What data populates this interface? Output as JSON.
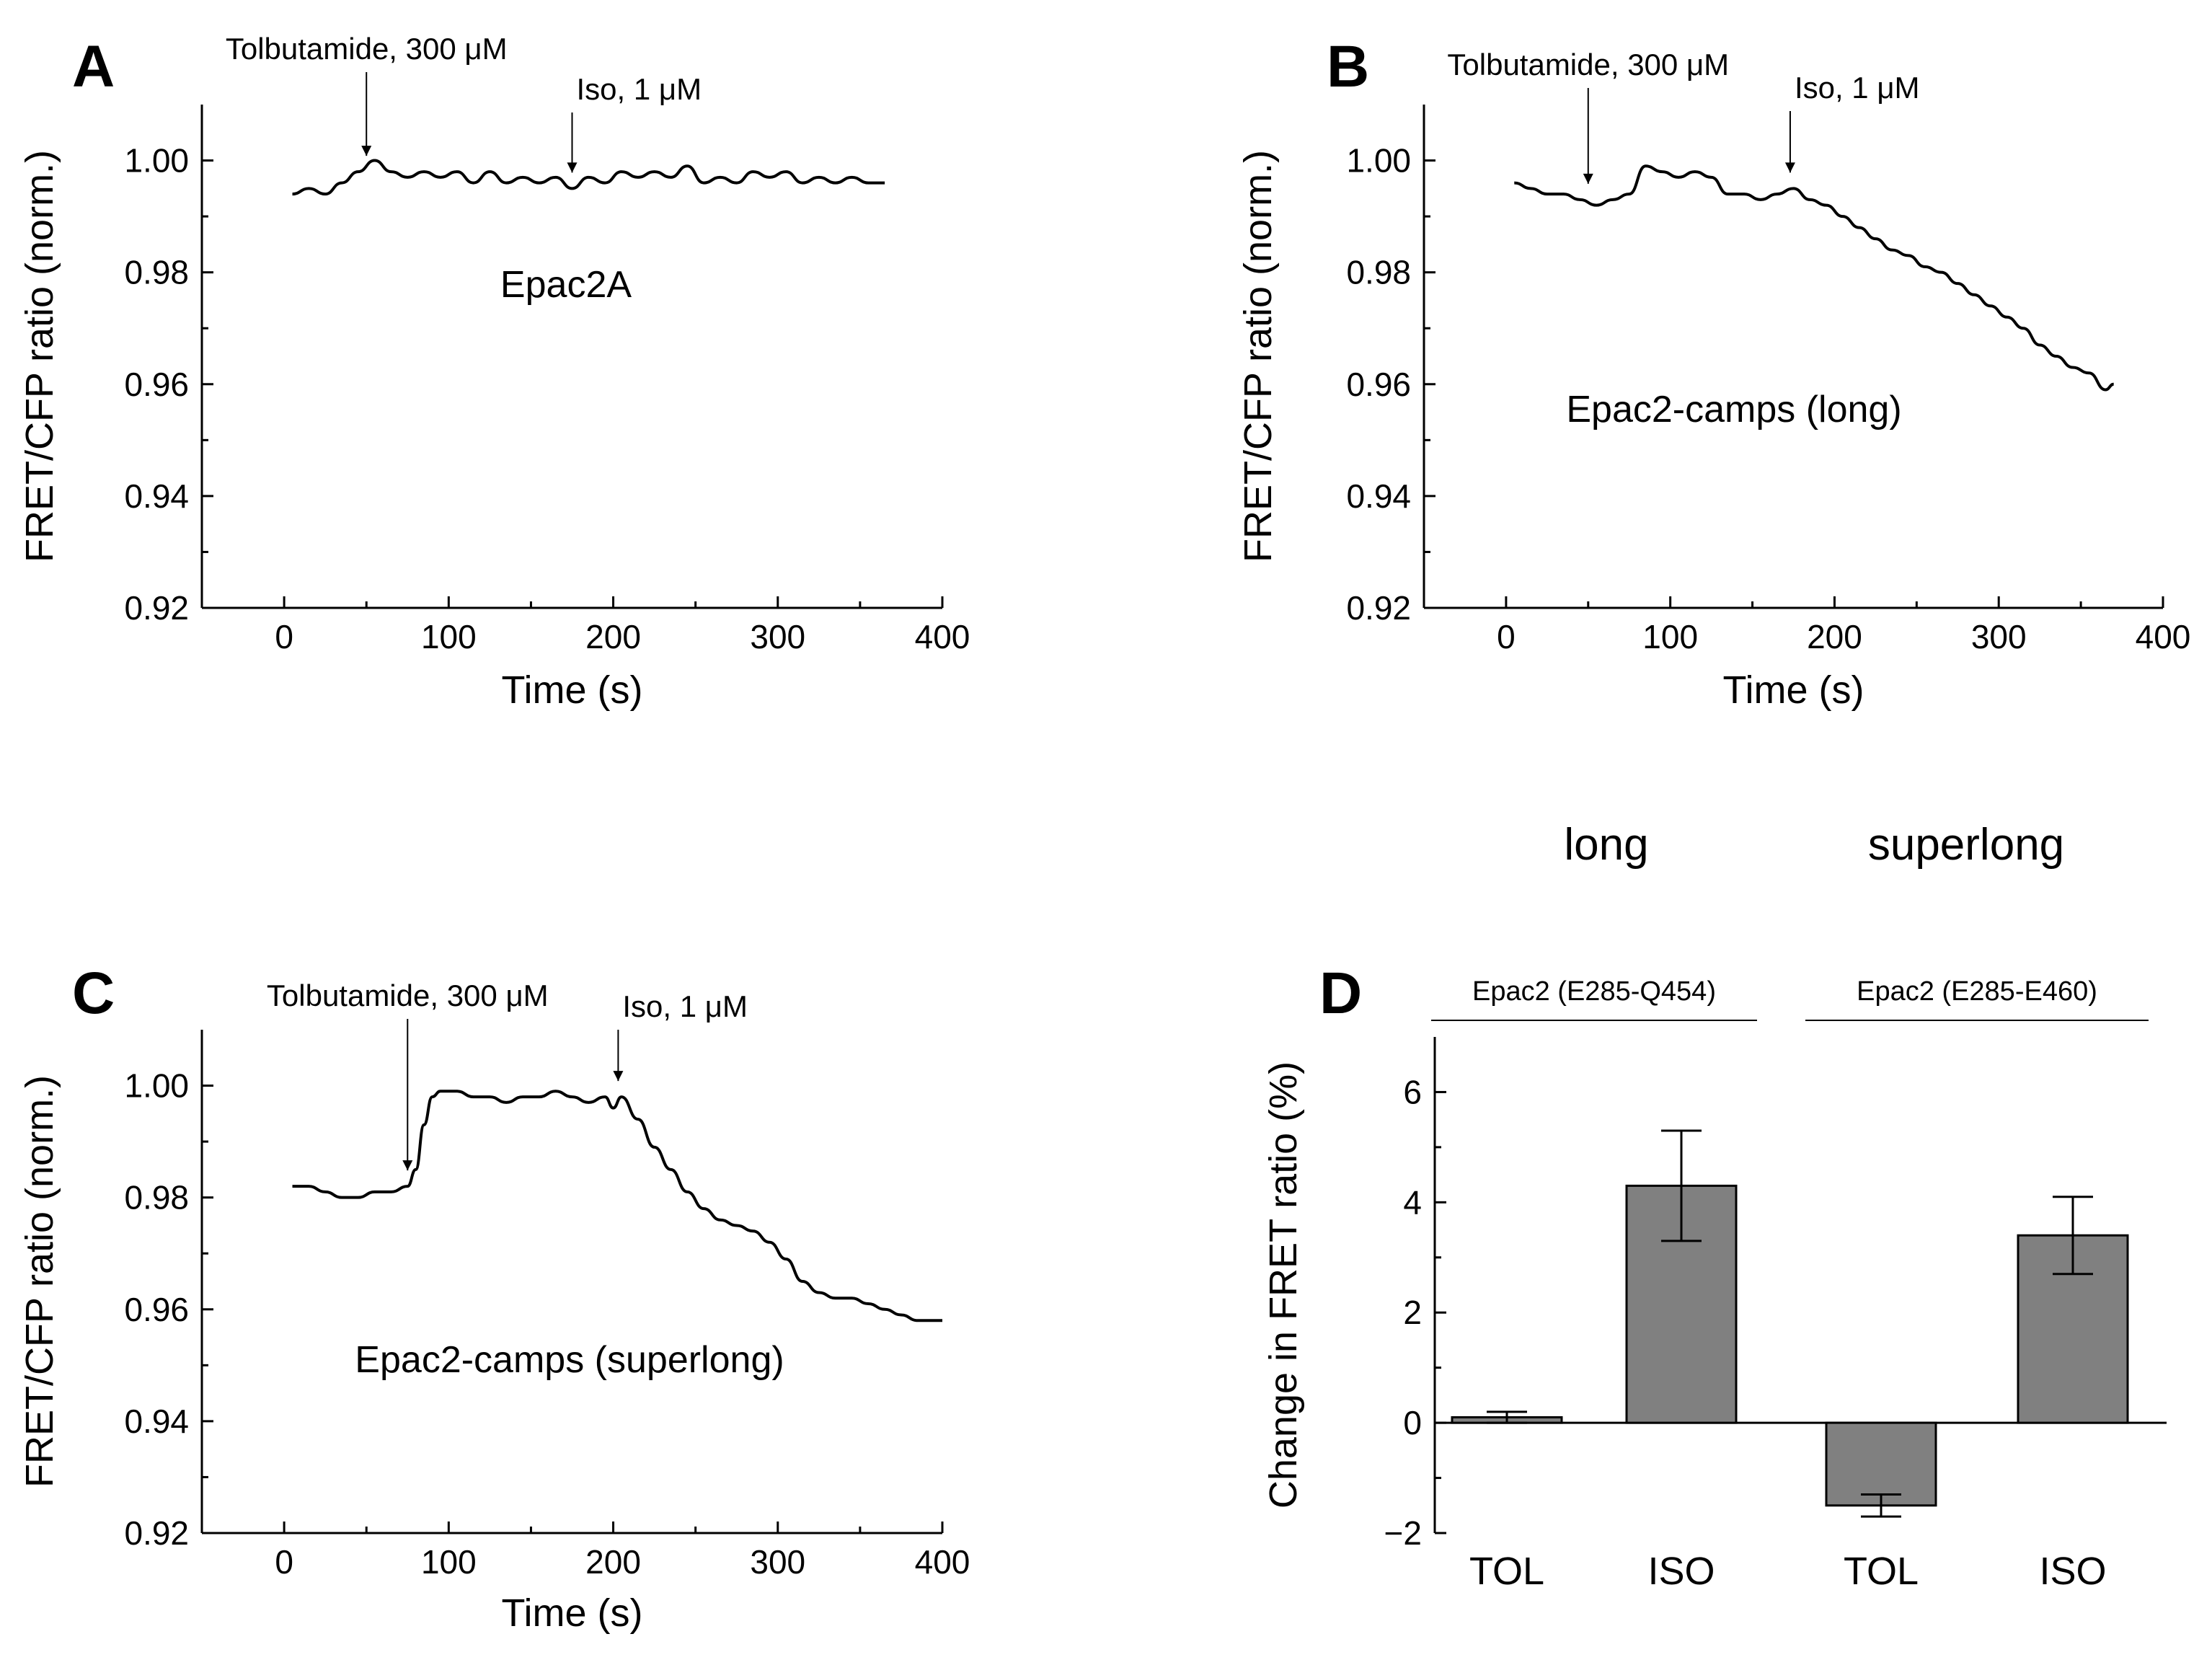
{
  "header_labels": [
    "long",
    "superlong"
  ],
  "chart_data": [
    {
      "panel": "A",
      "type": "line",
      "title": "",
      "series_label": "Epac2A",
      "xlabel": "Time (s)",
      "ylabel": "FRET/CFP ratio (norm.)",
      "xlim": [
        -50,
        400
      ],
      "ylim": [
        0.92,
        1.01
      ],
      "xticks": [
        0,
        100,
        200,
        300,
        400
      ],
      "yticks": [
        0.92,
        0.94,
        0.96,
        0.98,
        1.0
      ],
      "xtick_labels": [
        "0",
        "100",
        "200",
        "300",
        "400"
      ],
      "ytick_labels": [
        "0.92",
        "0.94",
        "0.96",
        "0.98",
        "1.00"
      ],
      "events": [
        {
          "x": 50,
          "label": "Tolbutamide, 300 μM"
        },
        {
          "x": 175,
          "label": "Iso, 1 μM"
        }
      ],
      "x": [
        5,
        15,
        25,
        35,
        45,
        55,
        65,
        75,
        85,
        95,
        105,
        115,
        125,
        135,
        145,
        155,
        165,
        175,
        185,
        195,
        205,
        215,
        225,
        235,
        245,
        255,
        265,
        275,
        285,
        295,
        305,
        315,
        325,
        335,
        345,
        355,
        365
      ],
      "y": [
        0.994,
        0.995,
        0.994,
        0.996,
        0.998,
        1.0,
        0.998,
        0.997,
        0.998,
        0.997,
        0.998,
        0.996,
        0.998,
        0.996,
        0.997,
        0.996,
        0.997,
        0.995,
        0.997,
        0.996,
        0.998,
        0.997,
        0.998,
        0.997,
        0.999,
        0.996,
        0.997,
        0.996,
        0.998,
        0.997,
        0.998,
        0.996,
        0.997,
        0.996,
        0.997,
        0.996,
        0.996
      ]
    },
    {
      "panel": "B",
      "type": "line",
      "title": "",
      "series_label": "Epac2-camps (long)",
      "xlabel": "Time (s)",
      "ylabel": "FRET/CFP ratio (norm.)",
      "xlim": [
        -50,
        400
      ],
      "ylim": [
        0.92,
        1.01
      ],
      "xticks": [
        0,
        100,
        200,
        300,
        400
      ],
      "yticks": [
        0.92,
        0.94,
        0.96,
        0.98,
        1.0
      ],
      "xtick_labels": [
        "0",
        "100",
        "200",
        "300",
        "400"
      ],
      "ytick_labels": [
        "0.92",
        "0.94",
        "0.96",
        "0.98",
        "1.00"
      ],
      "events": [
        {
          "x": 50,
          "label": "Tolbutamide, 300 μM"
        },
        {
          "x": 173,
          "label": "Iso, 1 μM"
        }
      ],
      "x": [
        5,
        15,
        25,
        35,
        45,
        55,
        65,
        75,
        85,
        95,
        105,
        115,
        125,
        135,
        145,
        155,
        165,
        175,
        185,
        195,
        205,
        215,
        225,
        235,
        245,
        255,
        265,
        275,
        285,
        295,
        305,
        315,
        325,
        335,
        345,
        355,
        365,
        370
      ],
      "y": [
        0.996,
        0.995,
        0.994,
        0.994,
        0.993,
        0.992,
        0.993,
        0.994,
        0.999,
        0.998,
        0.997,
        0.998,
        0.997,
        0.994,
        0.994,
        0.993,
        0.994,
        0.995,
        0.993,
        0.992,
        0.99,
        0.988,
        0.986,
        0.984,
        0.983,
        0.981,
        0.98,
        0.978,
        0.976,
        0.974,
        0.972,
        0.97,
        0.967,
        0.965,
        0.963,
        0.962,
        0.959,
        0.96
      ]
    },
    {
      "panel": "C",
      "type": "line",
      "title": "",
      "series_label": "Epac2-camps (superlong)",
      "xlabel": "Time (s)",
      "ylabel": "FRET/CFP ratio (norm.)",
      "xlim": [
        -50,
        400
      ],
      "ylim": [
        0.92,
        1.01
      ],
      "xticks": [
        0,
        100,
        200,
        300,
        400
      ],
      "yticks": [
        0.92,
        0.94,
        0.96,
        0.98,
        1.0
      ],
      "xtick_labels": [
        "0",
        "100",
        "200",
        "300",
        "400"
      ],
      "ytick_labels": [
        "0.92",
        "0.94",
        "0.96",
        "0.98",
        "1.00"
      ],
      "events": [
        {
          "x": 75,
          "label": "Tolbutamide, 300 μM"
        },
        {
          "x": 203,
          "label": "Iso, 1 μM"
        }
      ],
      "x": [
        5,
        15,
        25,
        35,
        45,
        55,
        65,
        75,
        80,
        85,
        90,
        95,
        105,
        115,
        125,
        135,
        145,
        155,
        165,
        175,
        185,
        195,
        200,
        205,
        215,
        225,
        235,
        245,
        255,
        265,
        275,
        285,
        295,
        305,
        315,
        325,
        335,
        345,
        355,
        365,
        375,
        385,
        395,
        400
      ],
      "y": [
        0.982,
        0.982,
        0.981,
        0.98,
        0.98,
        0.981,
        0.981,
        0.982,
        0.985,
        0.993,
        0.998,
        0.999,
        0.999,
        0.998,
        0.998,
        0.997,
        0.998,
        0.998,
        0.999,
        0.998,
        0.997,
        0.998,
        0.996,
        0.998,
        0.994,
        0.989,
        0.985,
        0.981,
        0.978,
        0.976,
        0.975,
        0.974,
        0.972,
        0.969,
        0.965,
        0.963,
        0.962,
        0.962,
        0.961,
        0.96,
        0.959,
        0.958,
        0.958,
        0.958
      ]
    },
    {
      "panel": "D",
      "type": "bar",
      "title": "",
      "xlabel": "",
      "ylabel": "Change in FRET ratio (%)",
      "ylim": [
        -2,
        7
      ],
      "yticks": [
        -2,
        0,
        2,
        4,
        6
      ],
      "ytick_labels": [
        "−2",
        "0",
        "2",
        "4",
        "6"
      ],
      "categories": [
        "TOL",
        "ISO",
        "TOL",
        "ISO"
      ],
      "values": [
        0.1,
        4.3,
        -1.5,
        3.4
      ],
      "errors": [
        0.1,
        1.0,
        0.2,
        0.7
      ],
      "groups": [
        {
          "label": "Epac2 (E285-Q454)",
          "members": [
            0,
            1
          ]
        },
        {
          "label": "Epac2 (E285-E460)",
          "members": [
            2,
            3
          ]
        }
      ],
      "bar_color": "#808080"
    }
  ]
}
